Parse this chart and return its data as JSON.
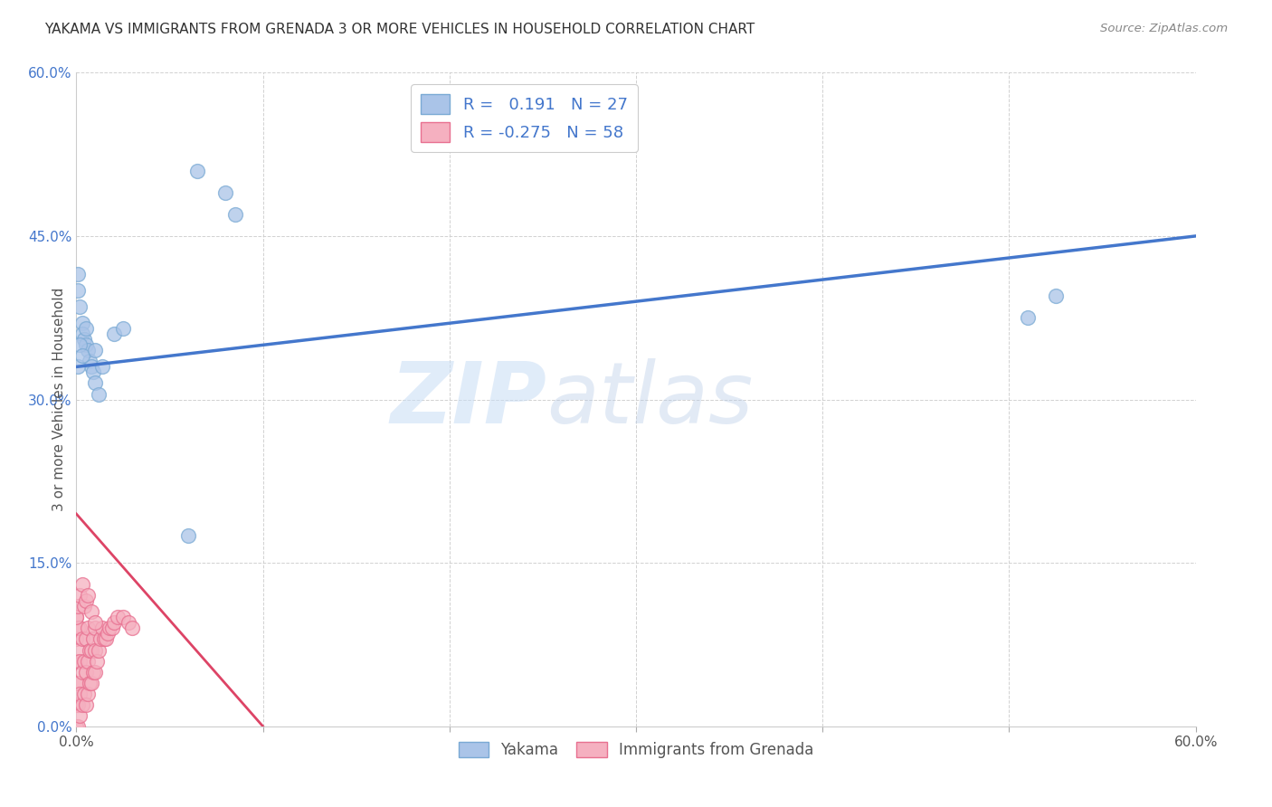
{
  "title": "YAKAMA VS IMMIGRANTS FROM GRENADA 3 OR MORE VEHICLES IN HOUSEHOLD CORRELATION CHART",
  "source": "Source: ZipAtlas.com",
  "ylabel": "3 or more Vehicles in Household",
  "xlim": [
    0.0,
    0.6
  ],
  "ylim": [
    0.0,
    0.6
  ],
  "xticks": [
    0.0,
    0.1,
    0.2,
    0.3,
    0.4,
    0.5,
    0.6
  ],
  "yticks": [
    0.0,
    0.15,
    0.3,
    0.45,
    0.6
  ],
  "ytick_labels": [
    "0.0%",
    "15.0%",
    "30.0%",
    "45.0%",
    "60.0%"
  ],
  "xtick_labels": [
    "0.0%",
    "",
    "",
    "",
    "",
    "",
    "60.0%"
  ],
  "legend_labels": [
    "Yakama",
    "Immigrants from Grenada"
  ],
  "blue_R": 0.191,
  "blue_N": 27,
  "pink_R": -0.275,
  "pink_N": 58,
  "blue_dot_color": "#aac4e8",
  "pink_dot_color": "#f5b0c0",
  "blue_dot_edge": "#7aaad4",
  "pink_dot_edge": "#e87090",
  "blue_line_color": "#4477cc",
  "pink_line_color": "#dd4466",
  "watermark_zip": "ZIP",
  "watermark_atlas": "atlas",
  "yakama_x": [
    0.001,
    0.001,
    0.002,
    0.003,
    0.003,
    0.004,
    0.005,
    0.006,
    0.007,
    0.008,
    0.009,
    0.01,
    0.012,
    0.014,
    0.02,
    0.025,
    0.06,
    0.065,
    0.08,
    0.085,
    0.001,
    0.002,
    0.003,
    0.005,
    0.01,
    0.51,
    0.525
  ],
  "yakama_y": [
    0.415,
    0.4,
    0.385,
    0.37,
    0.36,
    0.355,
    0.35,
    0.345,
    0.335,
    0.33,
    0.325,
    0.315,
    0.305,
    0.33,
    0.36,
    0.365,
    0.175,
    0.51,
    0.49,
    0.47,
    0.33,
    0.35,
    0.34,
    0.365,
    0.345,
    0.375,
    0.395
  ],
  "grenada_x": [
    0.0,
    0.0,
    0.0,
    0.0,
    0.0,
    0.0,
    0.001,
    0.001,
    0.001,
    0.001,
    0.001,
    0.002,
    0.002,
    0.002,
    0.002,
    0.003,
    0.003,
    0.003,
    0.004,
    0.004,
    0.005,
    0.005,
    0.005,
    0.006,
    0.006,
    0.006,
    0.007,
    0.007,
    0.008,
    0.008,
    0.009,
    0.009,
    0.01,
    0.01,
    0.01,
    0.011,
    0.012,
    0.013,
    0.014,
    0.015,
    0.016,
    0.017,
    0.018,
    0.019,
    0.02,
    0.022,
    0.025,
    0.028,
    0.03,
    0.0,
    0.001,
    0.002,
    0.003,
    0.004,
    0.005,
    0.006,
    0.008,
    0.01
  ],
  "grenada_y": [
    0.0,
    0.02,
    0.04,
    0.06,
    0.08,
    0.1,
    0.0,
    0.02,
    0.04,
    0.07,
    0.09,
    0.01,
    0.03,
    0.06,
    0.09,
    0.02,
    0.05,
    0.08,
    0.03,
    0.06,
    0.02,
    0.05,
    0.08,
    0.03,
    0.06,
    0.09,
    0.04,
    0.07,
    0.04,
    0.07,
    0.05,
    0.08,
    0.05,
    0.07,
    0.09,
    0.06,
    0.07,
    0.08,
    0.09,
    0.08,
    0.08,
    0.085,
    0.09,
    0.09,
    0.095,
    0.1,
    0.1,
    0.095,
    0.09,
    0.1,
    0.11,
    0.12,
    0.13,
    0.11,
    0.115,
    0.12,
    0.105,
    0.095
  ]
}
